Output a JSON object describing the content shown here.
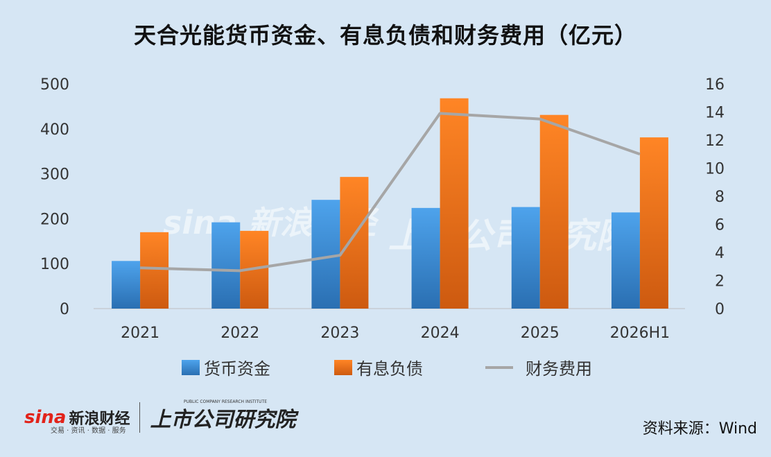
{
  "title": "天合光能货币资金、有息负债和财务费用（亿元）",
  "source": "资料来源：Wind",
  "logo": {
    "sina_mark": "sina",
    "sina_name": "新浪财经",
    "sina_sub": "交易 · 资讯 · 数据 · 服务",
    "institute_name": "上市公司研究院",
    "institute_en": "PUBLIC COMPANY RESEARCH INSTITUTE"
  },
  "colors": {
    "cash": "#3a8ad6",
    "debt": "#ee7418",
    "expense": "#a6a6a6",
    "background": "#d6e6f4"
  },
  "chart_data": {
    "type": "bar",
    "title": "天合光能货币资金、有息负债和财务费用（亿元）",
    "categories": [
      "2021",
      "2022",
      "2023",
      "2024",
      "2025",
      "2026H1"
    ],
    "series": [
      {
        "name": "货币资金",
        "type": "bar",
        "axis": "left",
        "values": [
          106,
          192,
          242,
          224,
          226,
          214
        ]
      },
      {
        "name": "有息负债",
        "type": "bar",
        "axis": "left",
        "values": [
          170,
          173,
          293,
          468,
          431,
          381
        ]
      },
      {
        "name": "财务费用",
        "type": "line",
        "axis": "right",
        "values": [
          2.9,
          2.7,
          3.8,
          13.9,
          13.5,
          11.0
        ]
      }
    ],
    "y_left": {
      "ylim": [
        0,
        500
      ],
      "ticks": [
        "0",
        "100",
        "200",
        "300",
        "400",
        "500"
      ]
    },
    "y_right": {
      "ylim": [
        0,
        16
      ],
      "ticks": [
        "0",
        "2",
        "4",
        "6",
        "8",
        "10",
        "12",
        "14",
        "16"
      ]
    },
    "legend": {
      "position": "bottom"
    },
    "grid": false
  }
}
